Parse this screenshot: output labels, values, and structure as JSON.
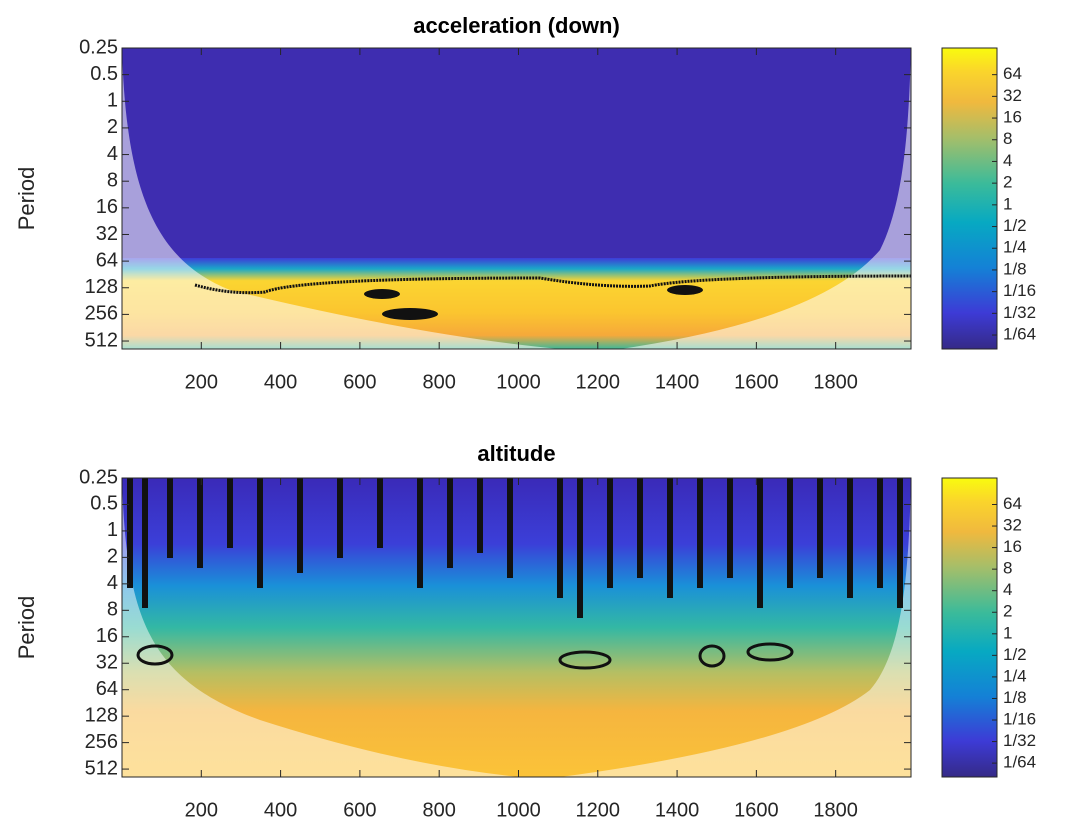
{
  "chart_data": [
    {
      "type": "heatmap",
      "title": "acceleration (down)",
      "ylabel": "Period",
      "xlim": [
        0,
        1990
      ],
      "xticks": [
        200,
        400,
        600,
        800,
        1000,
        1200,
        1400,
        1600,
        1800
      ],
      "ylim": [
        0.25,
        630
      ],
      "yticks": [
        0.25,
        0.5,
        1,
        2,
        4,
        8,
        16,
        32,
        64,
        128,
        256,
        512
      ],
      "y_scale": "log2",
      "y_reversed": true,
      "colormap": "parula",
      "colorbar": {
        "clim": [
          0.01,
          150
        ],
        "scale": "log2",
        "ticks": [
          64,
          32,
          16,
          8,
          4,
          2,
          1,
          {
            "value": 0.5,
            "label": "1/2"
          },
          {
            "value": 0.25,
            "label": "1/4"
          },
          {
            "value": 0.125,
            "label": "1/8"
          },
          {
            "value": 0.0625,
            "label": "1/16"
          },
          {
            "value": 0.03125,
            "label": "1/32"
          },
          {
            "value": 0.015625,
            "label": "1/64"
          }
        ]
      }
    },
    {
      "type": "heatmap",
      "title": "altitude",
      "ylabel": "Period",
      "xlim": [
        0,
        1990
      ],
      "xticks": [
        200,
        400,
        600,
        800,
        1000,
        1200,
        1400,
        1600,
        1800
      ],
      "ylim": [
        0.25,
        630
      ],
      "yticks": [
        0.25,
        0.5,
        1,
        2,
        4,
        8,
        16,
        32,
        64,
        128,
        256,
        512
      ],
      "y_scale": "log2",
      "y_reversed": true,
      "colormap": "parula",
      "colorbar": {
        "clim": [
          0.01,
          150
        ],
        "scale": "log2",
        "ticks": [
          64,
          32,
          16,
          8,
          4,
          2,
          1,
          {
            "value": 0.5,
            "label": "1/2"
          },
          {
            "value": 0.25,
            "label": "1/4"
          },
          {
            "value": 0.125,
            "label": "1/8"
          },
          {
            "value": 0.0625,
            "label": "1/16"
          },
          {
            "value": 0.03125,
            "label": "1/32"
          },
          {
            "value": 0.015625,
            "label": "1/64"
          }
        ]
      }
    }
  ]
}
